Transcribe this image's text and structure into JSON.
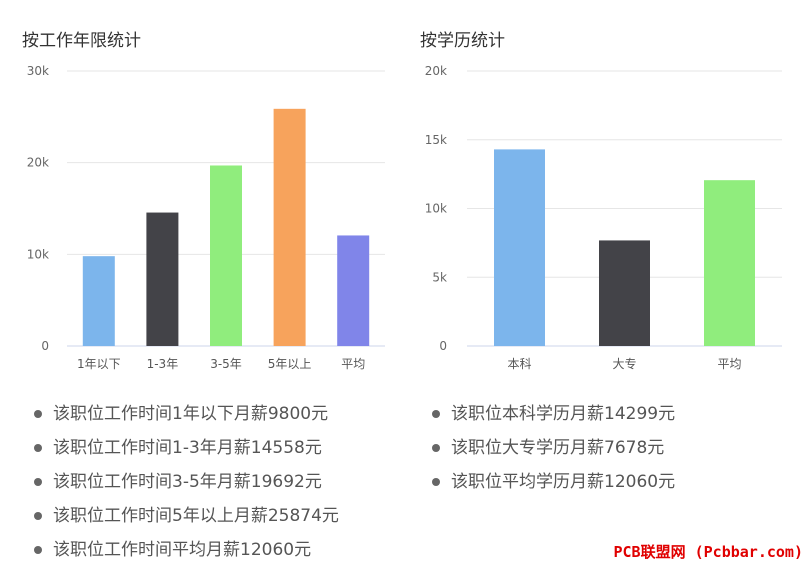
{
  "chart_data": [
    {
      "type": "bar",
      "title": "按工作年限统计",
      "categories": [
        "1年以下",
        "1-3年",
        "3-5年",
        "5年以上",
        "平均"
      ],
      "values": [
        9800,
        14558,
        19692,
        25874,
        12060
      ],
      "colors": [
        "#7cb5ec",
        "#434348",
        "#90ed7d",
        "#f7a35c",
        "#8085e9"
      ],
      "ylim": [
        0,
        30000
      ],
      "yticks": [
        0,
        10000,
        20000,
        30000
      ],
      "ytick_labels": [
        "0",
        "10k",
        "20k",
        "30k"
      ],
      "grid": true,
      "legend": "none"
    },
    {
      "type": "bar",
      "title": "按学历统计",
      "categories": [
        "本科",
        "大专",
        "平均"
      ],
      "values": [
        14299,
        7678,
        12060
      ],
      "colors": [
        "#7cb5ec",
        "#434348",
        "#90ed7d"
      ],
      "ylim": [
        0,
        20000
      ],
      "yticks": [
        0,
        5000,
        10000,
        15000,
        20000
      ],
      "ytick_labels": [
        "0",
        "5k",
        "10k",
        "15k",
        "20k"
      ],
      "grid": true,
      "legend": "none"
    }
  ],
  "summaries": {
    "experience": [
      "该职位工作时间1年以下月薪9800元",
      "该职位工作时间1-3年月薪14558元",
      "该职位工作时间3-5年月薪19692元",
      "该职位工作时间5年以上月薪25874元",
      "该职位工作时间平均月薪12060元"
    ],
    "education": [
      "该职位本科学历月薪14299元",
      "该职位大专学历月薪7678元",
      "该职位平均学历月薪12060元"
    ]
  },
  "watermark": "PCB联盟网 (Pcbbar.com)"
}
